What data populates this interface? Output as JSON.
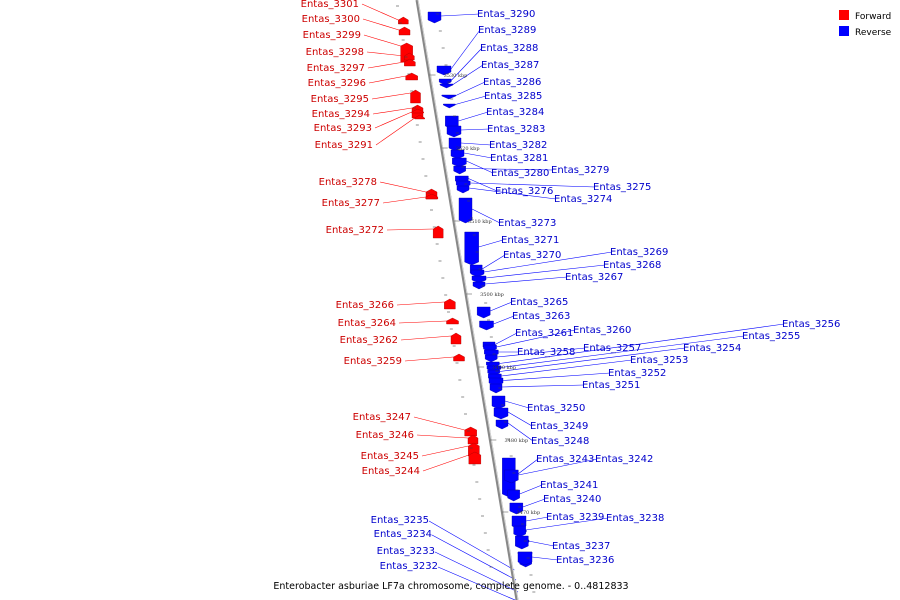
{
  "title": "Enterobacter asburiae LF7a chromosome, complete genome. - 0..4812833",
  "legend": [
    {
      "label": "Forward",
      "color": "#ff0000"
    },
    {
      "label": "Reverse",
      "color": "#0000ff"
    }
  ],
  "colors": {
    "forward": "#ff0000",
    "reverse": "#0000ff",
    "forward_label": "#cc0000",
    "reverse_label": "#0000cc",
    "axis": "#999999"
  },
  "ticks": [
    "3530 kbp",
    "3520 kbp",
    "3510 kbp",
    "3500 kbp",
    "3490 kbp",
    "3480 kbp",
    "3470 kbp"
  ],
  "forward_genes": [
    "Entas_3301",
    "Entas_3300",
    "Entas_3299",
    "Entas_3298",
    "Entas_3297",
    "Entas_3296",
    "Entas_3295",
    "Entas_3294",
    "Entas_3293",
    "Entas_3291",
    "Entas_3278",
    "Entas_3277",
    "Entas_3272",
    "Entas_3266",
    "Entas_3264",
    "Entas_3262",
    "Entas_3259",
    "Entas_3247",
    "Entas_3246",
    "Entas_3245",
    "Entas_3244"
  ],
  "reverse_genes": [
    "Entas_3235",
    "Entas_3234",
    "Entas_3233",
    "Entas_3232",
    "Entas_3290",
    "Entas_3289",
    "Entas_3288",
    "Entas_3287",
    "Entas_3286",
    "Entas_3285",
    "Entas_3284",
    "Entas_3283",
    "Entas_3282",
    "Entas_3281",
    "Entas_3280",
    "Entas_3279",
    "Entas_3276",
    "Entas_3275",
    "Entas_3274",
    "Entas_3273",
    "Entas_3271",
    "Entas_3270",
    "Entas_3269",
    "Entas_3268",
    "Entas_3267",
    "Entas_3265",
    "Entas_3263",
    "Entas_3261",
    "Entas_3260",
    "Entas_3258",
    "Entas_3257",
    "Entas_3256",
    "Entas_3255",
    "Entas_3254",
    "Entas_3253",
    "Entas_3252",
    "Entas_3251",
    "Entas_3250",
    "Entas_3249",
    "Entas_3248",
    "Entas_3243",
    "Entas_3242",
    "Entas_3241",
    "Entas_3240",
    "Entas_3239",
    "Entas_3238",
    "Entas_3237",
    "Entas_3236"
  ]
}
